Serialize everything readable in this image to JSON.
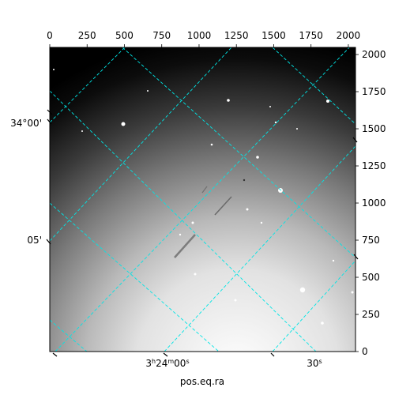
{
  "chart_data": {
    "type": "image",
    "xlabel": "pos.eq.ra",
    "ylabel": "",
    "pixel_axes": {
      "x_ticks": [
        "0",
        "250",
        "500",
        "750",
        "1000",
        "1250",
        "1500",
        "1750",
        "2000"
      ],
      "x_values": [
        0,
        250,
        500,
        750,
        1000,
        1250,
        1500,
        1750,
        2000
      ],
      "y_ticks": [
        "0",
        "250",
        "500",
        "750",
        "1000",
        "1250",
        "1500",
        "1750",
        "2000"
      ],
      "y_values": [
        0,
        250,
        500,
        750,
        1000,
        1250,
        1500,
        1750,
        2000
      ],
      "xlim": [
        0,
        2048
      ],
      "ylim": [
        0,
        2048
      ]
    },
    "world_axes": {
      "ra_labels": [
        {
          "h": "3",
          "m": "24",
          "s": "00",
          "text": "3h24m00s"
        },
        {
          "s": "30",
          "text": "30s"
        }
      ],
      "dec_labels": [
        "34°00'",
        "05'"
      ]
    },
    "grid": true,
    "grid_color": "#00e5e5",
    "colormap": "gray"
  }
}
